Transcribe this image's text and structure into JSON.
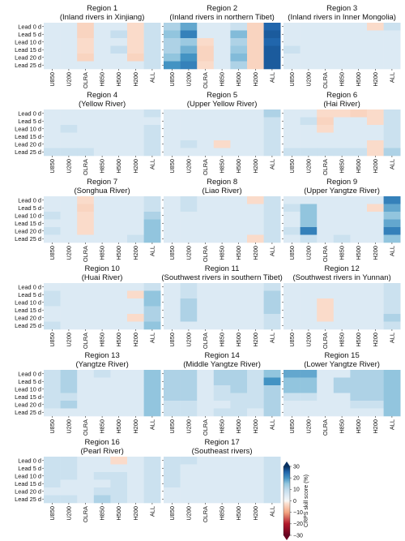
{
  "chart_data": {
    "type": "heatmap",
    "rows": [
      "Lead 0 d",
      "Lead 5 d",
      "Lead 10 d",
      "Lead 15 d",
      "Lead 20 d",
      "Lead 25 d"
    ],
    "columns": [
      "U850",
      "U200",
      "OLRA",
      "H850",
      "H500",
      "H200",
      "ALL"
    ],
    "colorbar": {
      "label": "CRPS skill score (%)",
      "ticks": [
        30,
        20,
        10,
        0,
        -10,
        -20,
        -30
      ],
      "range": [
        -30,
        30
      ],
      "extend": "both",
      "colors": {
        "negative_max": "#67001f",
        "neutral": "#f7f7f7",
        "positive_max": "#053061"
      }
    },
    "panels": [
      {
        "region": "Region 1",
        "name": "(Inland rivers in Xinjiang)",
        "values": [
          [
            5,
            5,
            -4,
            5,
            5,
            -3,
            8
          ],
          [
            5,
            5,
            -4,
            5,
            9,
            -3,
            8
          ],
          [
            5,
            5,
            -3,
            5,
            5,
            -3,
            8
          ],
          [
            5,
            5,
            -3,
            5,
            9,
            -3,
            8
          ],
          [
            5,
            5,
            -4,
            5,
            5,
            -4,
            8
          ],
          [
            5,
            5,
            5,
            5,
            5,
            5,
            8
          ]
        ]
      },
      {
        "region": "Region 2",
        "name": "(Inland rivers in northern Tibet)",
        "values": [
          [
            12,
            18,
            5,
            5,
            8,
            -4,
            25
          ],
          [
            15,
            22,
            5,
            5,
            16,
            -4,
            26
          ],
          [
            12,
            14,
            -3,
            5,
            12,
            -4,
            25
          ],
          [
            12,
            17,
            -4,
            5,
            14,
            -4,
            26
          ],
          [
            15,
            20,
            -4,
            5,
            16,
            -4,
            26
          ],
          [
            20,
            22,
            -3,
            5,
            12,
            -4,
            26
          ]
        ]
      },
      {
        "region": "Region 3",
        "name": "(Inland rivers in Inner Mongolia)",
        "values": [
          [
            5,
            5,
            5,
            5,
            5,
            -3,
            8
          ],
          [
            5,
            5,
            5,
            5,
            5,
            5,
            5
          ],
          [
            5,
            5,
            5,
            5,
            5,
            5,
            5
          ],
          [
            8,
            5,
            5,
            5,
            5,
            5,
            5
          ],
          [
            5,
            5,
            5,
            5,
            5,
            5,
            5
          ],
          [
            5,
            5,
            5,
            5,
            5,
            5,
            5
          ]
        ]
      },
      {
        "region": "Region 4",
        "name": "(Yellow River)",
        "values": [
          [
            5,
            5,
            5,
            5,
            5,
            5,
            8
          ],
          [
            5,
            5,
            5,
            5,
            5,
            5,
            5
          ],
          [
            5,
            8,
            5,
            5,
            5,
            5,
            8
          ],
          [
            5,
            5,
            5,
            5,
            5,
            5,
            8
          ],
          [
            5,
            5,
            5,
            5,
            5,
            5,
            8
          ],
          [
            8,
            8,
            8,
            5,
            5,
            5,
            8
          ]
        ]
      },
      {
        "region": "Region 5",
        "name": "(Upper Yellow River)",
        "values": [
          [
            5,
            5,
            5,
            5,
            5,
            5,
            12
          ],
          [
            5,
            5,
            5,
            5,
            5,
            5,
            8
          ],
          [
            5,
            5,
            5,
            5,
            5,
            5,
            8
          ],
          [
            5,
            5,
            5,
            5,
            5,
            5,
            8
          ],
          [
            5,
            8,
            5,
            -3,
            5,
            5,
            8
          ],
          [
            5,
            5,
            5,
            5,
            5,
            5,
            8
          ]
        ]
      },
      {
        "region": "Region 6",
        "name": "(Hai River)",
        "values": [
          [
            5,
            5,
            -3,
            -3,
            -4,
            -3,
            8
          ],
          [
            5,
            8,
            -4,
            5,
            5,
            -3,
            8
          ],
          [
            5,
            5,
            -3,
            5,
            5,
            5,
            8
          ],
          [
            5,
            5,
            5,
            5,
            5,
            5,
            8
          ],
          [
            5,
            5,
            5,
            5,
            5,
            -3,
            8
          ],
          [
            8,
            8,
            8,
            8,
            8,
            -3,
            12
          ]
        ]
      },
      {
        "region": "Region 7",
        "name": "(Songhua River)",
        "values": [
          [
            5,
            5,
            -3,
            5,
            5,
            5,
            8
          ],
          [
            5,
            5,
            -4,
            5,
            5,
            5,
            8
          ],
          [
            8,
            5,
            -3,
            5,
            5,
            5,
            12
          ],
          [
            5,
            5,
            -3,
            5,
            5,
            5,
            15
          ],
          [
            8,
            5,
            -3,
            5,
            5,
            5,
            15
          ],
          [
            5,
            5,
            5,
            5,
            5,
            8,
            15
          ]
        ]
      },
      {
        "region": "Region 8",
        "name": "(Liao River)",
        "values": [
          [
            5,
            8,
            5,
            5,
            5,
            -3,
            8
          ],
          [
            5,
            8,
            5,
            5,
            5,
            5,
            8
          ],
          [
            5,
            5,
            5,
            5,
            5,
            5,
            8
          ],
          [
            5,
            5,
            5,
            5,
            5,
            5,
            8
          ],
          [
            5,
            5,
            5,
            5,
            5,
            5,
            8
          ],
          [
            5,
            5,
            5,
            5,
            5,
            -3,
            8
          ]
        ]
      },
      {
        "region": "Region 9",
        "name": "(Upper Yangtze River)",
        "values": [
          [
            5,
            5,
            5,
            5,
            5,
            5,
            22
          ],
          [
            8,
            15,
            5,
            5,
            5,
            -3,
            18
          ],
          [
            5,
            15,
            5,
            5,
            5,
            5,
            15
          ],
          [
            5,
            15,
            5,
            5,
            5,
            5,
            18
          ],
          [
            8,
            22,
            5,
            5,
            5,
            5,
            22
          ],
          [
            5,
            8,
            5,
            8,
            5,
            5,
            15
          ]
        ]
      },
      {
        "region": "Region 10",
        "name": "(Huai River)",
        "values": [
          [
            5,
            5,
            5,
            5,
            5,
            5,
            8
          ],
          [
            8,
            5,
            5,
            5,
            5,
            -3,
            15
          ],
          [
            8,
            5,
            5,
            5,
            5,
            5,
            15
          ],
          [
            5,
            5,
            5,
            5,
            5,
            5,
            12
          ],
          [
            5,
            5,
            5,
            5,
            5,
            -3,
            12
          ],
          [
            8,
            5,
            5,
            5,
            5,
            5,
            15
          ]
        ]
      },
      {
        "region": "Region 11",
        "name": "(Southwest rivers in southern Tibet)",
        "values": [
          [
            5,
            8,
            5,
            5,
            5,
            5,
            8
          ],
          [
            5,
            8,
            5,
            5,
            5,
            5,
            12
          ],
          [
            5,
            12,
            5,
            5,
            5,
            5,
            12
          ],
          [
            5,
            12,
            5,
            5,
            5,
            5,
            12
          ],
          [
            5,
            12,
            5,
            5,
            5,
            5,
            8
          ],
          [
            5,
            5,
            5,
            5,
            5,
            5,
            8
          ]
        ]
      },
      {
        "region": "Region 12",
        "name": "(Southwest rivers in Yunnan)",
        "values": [
          [
            5,
            5,
            5,
            5,
            5,
            5,
            8
          ],
          [
            5,
            5,
            5,
            5,
            5,
            5,
            8
          ],
          [
            5,
            5,
            -3,
            5,
            5,
            5,
            8
          ],
          [
            5,
            5,
            -3,
            5,
            5,
            5,
            8
          ],
          [
            5,
            5,
            -3,
            5,
            5,
            5,
            12
          ],
          [
            5,
            5,
            5,
            5,
            5,
            5,
            8
          ]
        ]
      },
      {
        "region": "Region 13",
        "name": "(Yangtze River)",
        "values": [
          [
            8,
            12,
            5,
            8,
            5,
            5,
            15
          ],
          [
            8,
            12,
            5,
            5,
            5,
            5,
            15
          ],
          [
            8,
            12,
            5,
            5,
            5,
            5,
            15
          ],
          [
            8,
            8,
            5,
            5,
            5,
            5,
            15
          ],
          [
            8,
            12,
            5,
            5,
            5,
            5,
            15
          ],
          [
            5,
            5,
            5,
            5,
            5,
            5,
            15
          ]
        ]
      },
      {
        "region": "Region 14",
        "name": "(Middle Yangtze River)",
        "values": [
          [
            12,
            12,
            5,
            12,
            12,
            8,
            15
          ],
          [
            12,
            12,
            5,
            12,
            12,
            8,
            20
          ],
          [
            12,
            12,
            5,
            8,
            12,
            8,
            12
          ],
          [
            12,
            12,
            5,
            8,
            8,
            8,
            12
          ],
          [
            8,
            8,
            5,
            5,
            8,
            8,
            12
          ],
          [
            8,
            8,
            5,
            8,
            8,
            5,
            12
          ]
        ]
      },
      {
        "region": "Region 15",
        "name": "(Lower Yangtze River)",
        "values": [
          [
            18,
            18,
            5,
            5,
            12,
            12,
            15
          ],
          [
            15,
            15,
            5,
            12,
            12,
            12,
            15
          ],
          [
            15,
            15,
            5,
            12,
            12,
            12,
            15
          ],
          [
            8,
            8,
            5,
            5,
            12,
            12,
            15
          ],
          [
            5,
            5,
            5,
            5,
            8,
            8,
            15
          ],
          [
            5,
            5,
            5,
            5,
            5,
            5,
            15
          ]
        ]
      },
      {
        "region": "Region 16",
        "name": "(Pearl River)",
        "values": [
          [
            8,
            8,
            5,
            5,
            -3,
            5,
            8
          ],
          [
            8,
            8,
            5,
            5,
            5,
            5,
            8
          ],
          [
            8,
            8,
            5,
            8,
            8,
            5,
            8
          ],
          [
            8,
            5,
            5,
            5,
            8,
            5,
            8
          ],
          [
            5,
            5,
            5,
            8,
            8,
            5,
            8
          ],
          [
            8,
            8,
            5,
            12,
            8,
            5,
            8
          ]
        ]
      },
      {
        "region": "Region 17",
        "name": "(Southeast rivers)",
        "values": [
          [
            8,
            8,
            5,
            5,
            5,
            5,
            8
          ],
          [
            8,
            5,
            5,
            5,
            5,
            5,
            8
          ],
          [
            8,
            5,
            5,
            5,
            5,
            5,
            8
          ],
          [
            8,
            5,
            5,
            5,
            5,
            5,
            8
          ],
          [
            5,
            5,
            5,
            5,
            5,
            5,
            8
          ],
          [
            5,
            5,
            5,
            5,
            5,
            5,
            8
          ]
        ]
      }
    ]
  }
}
